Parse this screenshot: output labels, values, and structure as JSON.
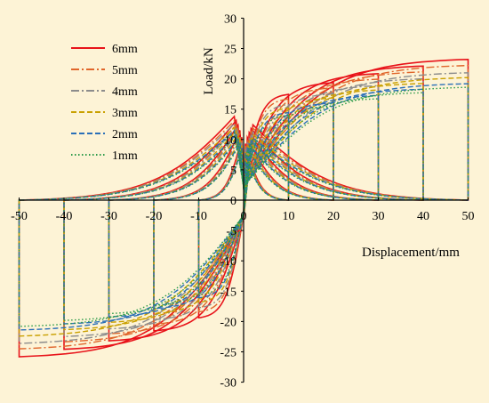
{
  "chart_data": {
    "type": "line",
    "title": "",
    "xlabel": "Displacement/mm",
    "ylabel": "Load/kN",
    "xlim": [
      -50,
      50
    ],
    "ylim": [
      -30,
      30
    ],
    "x_ticks": [
      -50,
      -40,
      -30,
      -20,
      -10,
      0,
      10,
      20,
      30,
      40,
      50
    ],
    "y_ticks": [
      -30,
      -25,
      -20,
      -15,
      -10,
      -5,
      0,
      5,
      10,
      15,
      20,
      25,
      30
    ],
    "grid": false,
    "legend_position": "top-left",
    "series": [
      {
        "name": "6mm",
        "color": "#e8131a",
        "dash": "solid",
        "Fmax": 23.2,
        "Fmin": -25.8
      },
      {
        "name": "5mm",
        "color": "#e0662b",
        "dash": "dashdot",
        "Fmax": 22.2,
        "Fmin": -24.5
      },
      {
        "name": "4mm",
        "color": "#8c8c8c",
        "dash": "dashdot",
        "Fmax": 21.0,
        "Fmin": -23.6
      },
      {
        "name": "3mm",
        "color": "#c9a000",
        "dash": "dashed",
        "Fmax": 20.2,
        "Fmin": -22.4
      },
      {
        "name": "2mm",
        "color": "#2a6fb8",
        "dash": "dashed",
        "Fmax": 19.2,
        "Fmin": -21.4
      },
      {
        "name": "1mm",
        "color": "#2a9a48",
        "dash": "dotted",
        "Fmax": 18.6,
        "Fmin": -20.8
      }
    ],
    "loading_amplitudes": [
      10,
      20,
      30,
      40,
      50
    ]
  }
}
